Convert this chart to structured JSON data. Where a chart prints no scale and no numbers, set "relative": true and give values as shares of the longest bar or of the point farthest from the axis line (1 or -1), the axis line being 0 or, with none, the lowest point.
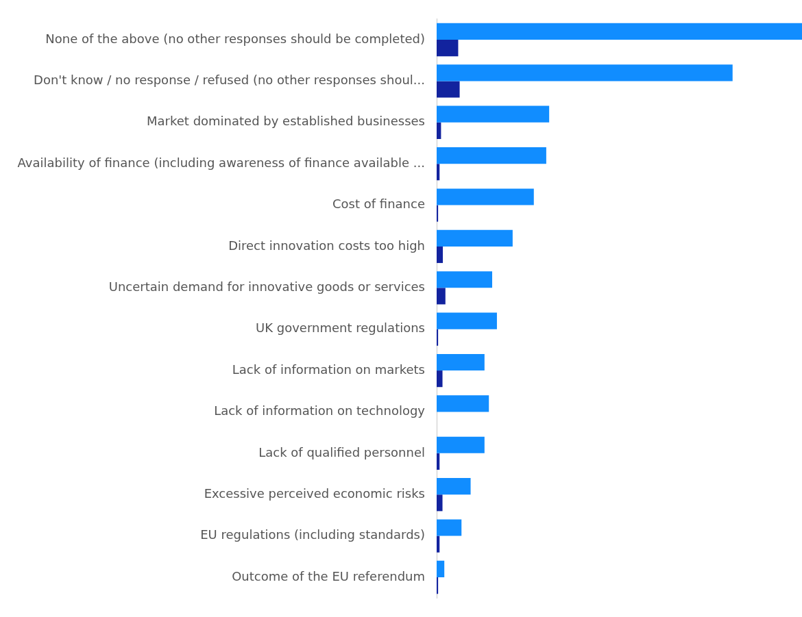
{
  "chart_data": {
    "type": "bar",
    "orientation": "horizontal",
    "relative": true,
    "legend": false,
    "categories": [
      "None of the above (no other responses should be completed)",
      "Don't know / no response / refused (no other responses shoul...",
      "Market dominated by established businesses",
      "Availability of finance (including awareness of finance available ...",
      "Cost of finance",
      "Direct innovation costs too high",
      "Uncertain demand for innovative goods or services",
      "UK government regulations",
      "Lack of information on markets",
      "Lack of information on technology",
      "Lack of qualified personnel",
      "Excessive perceived economic risks",
      "EU regulations (including standards)",
      "Outcome of the EU referendum"
    ],
    "series": [
      {
        "color": "#118dff",
        "values": [
          1,
          0.81,
          0.308,
          0.3,
          0.266,
          0.208,
          0.152,
          0.165,
          0.131,
          0.143,
          0.131,
          0.093,
          0.068,
          0.021
        ]
      },
      {
        "color": "#12239e",
        "values": [
          0.059,
          0.063,
          0.012,
          0.008,
          0.004,
          0.017,
          0.024,
          0.004,
          0.016,
          0,
          0.008,
          0.016,
          0.008,
          0.004
        ]
      }
    ]
  }
}
